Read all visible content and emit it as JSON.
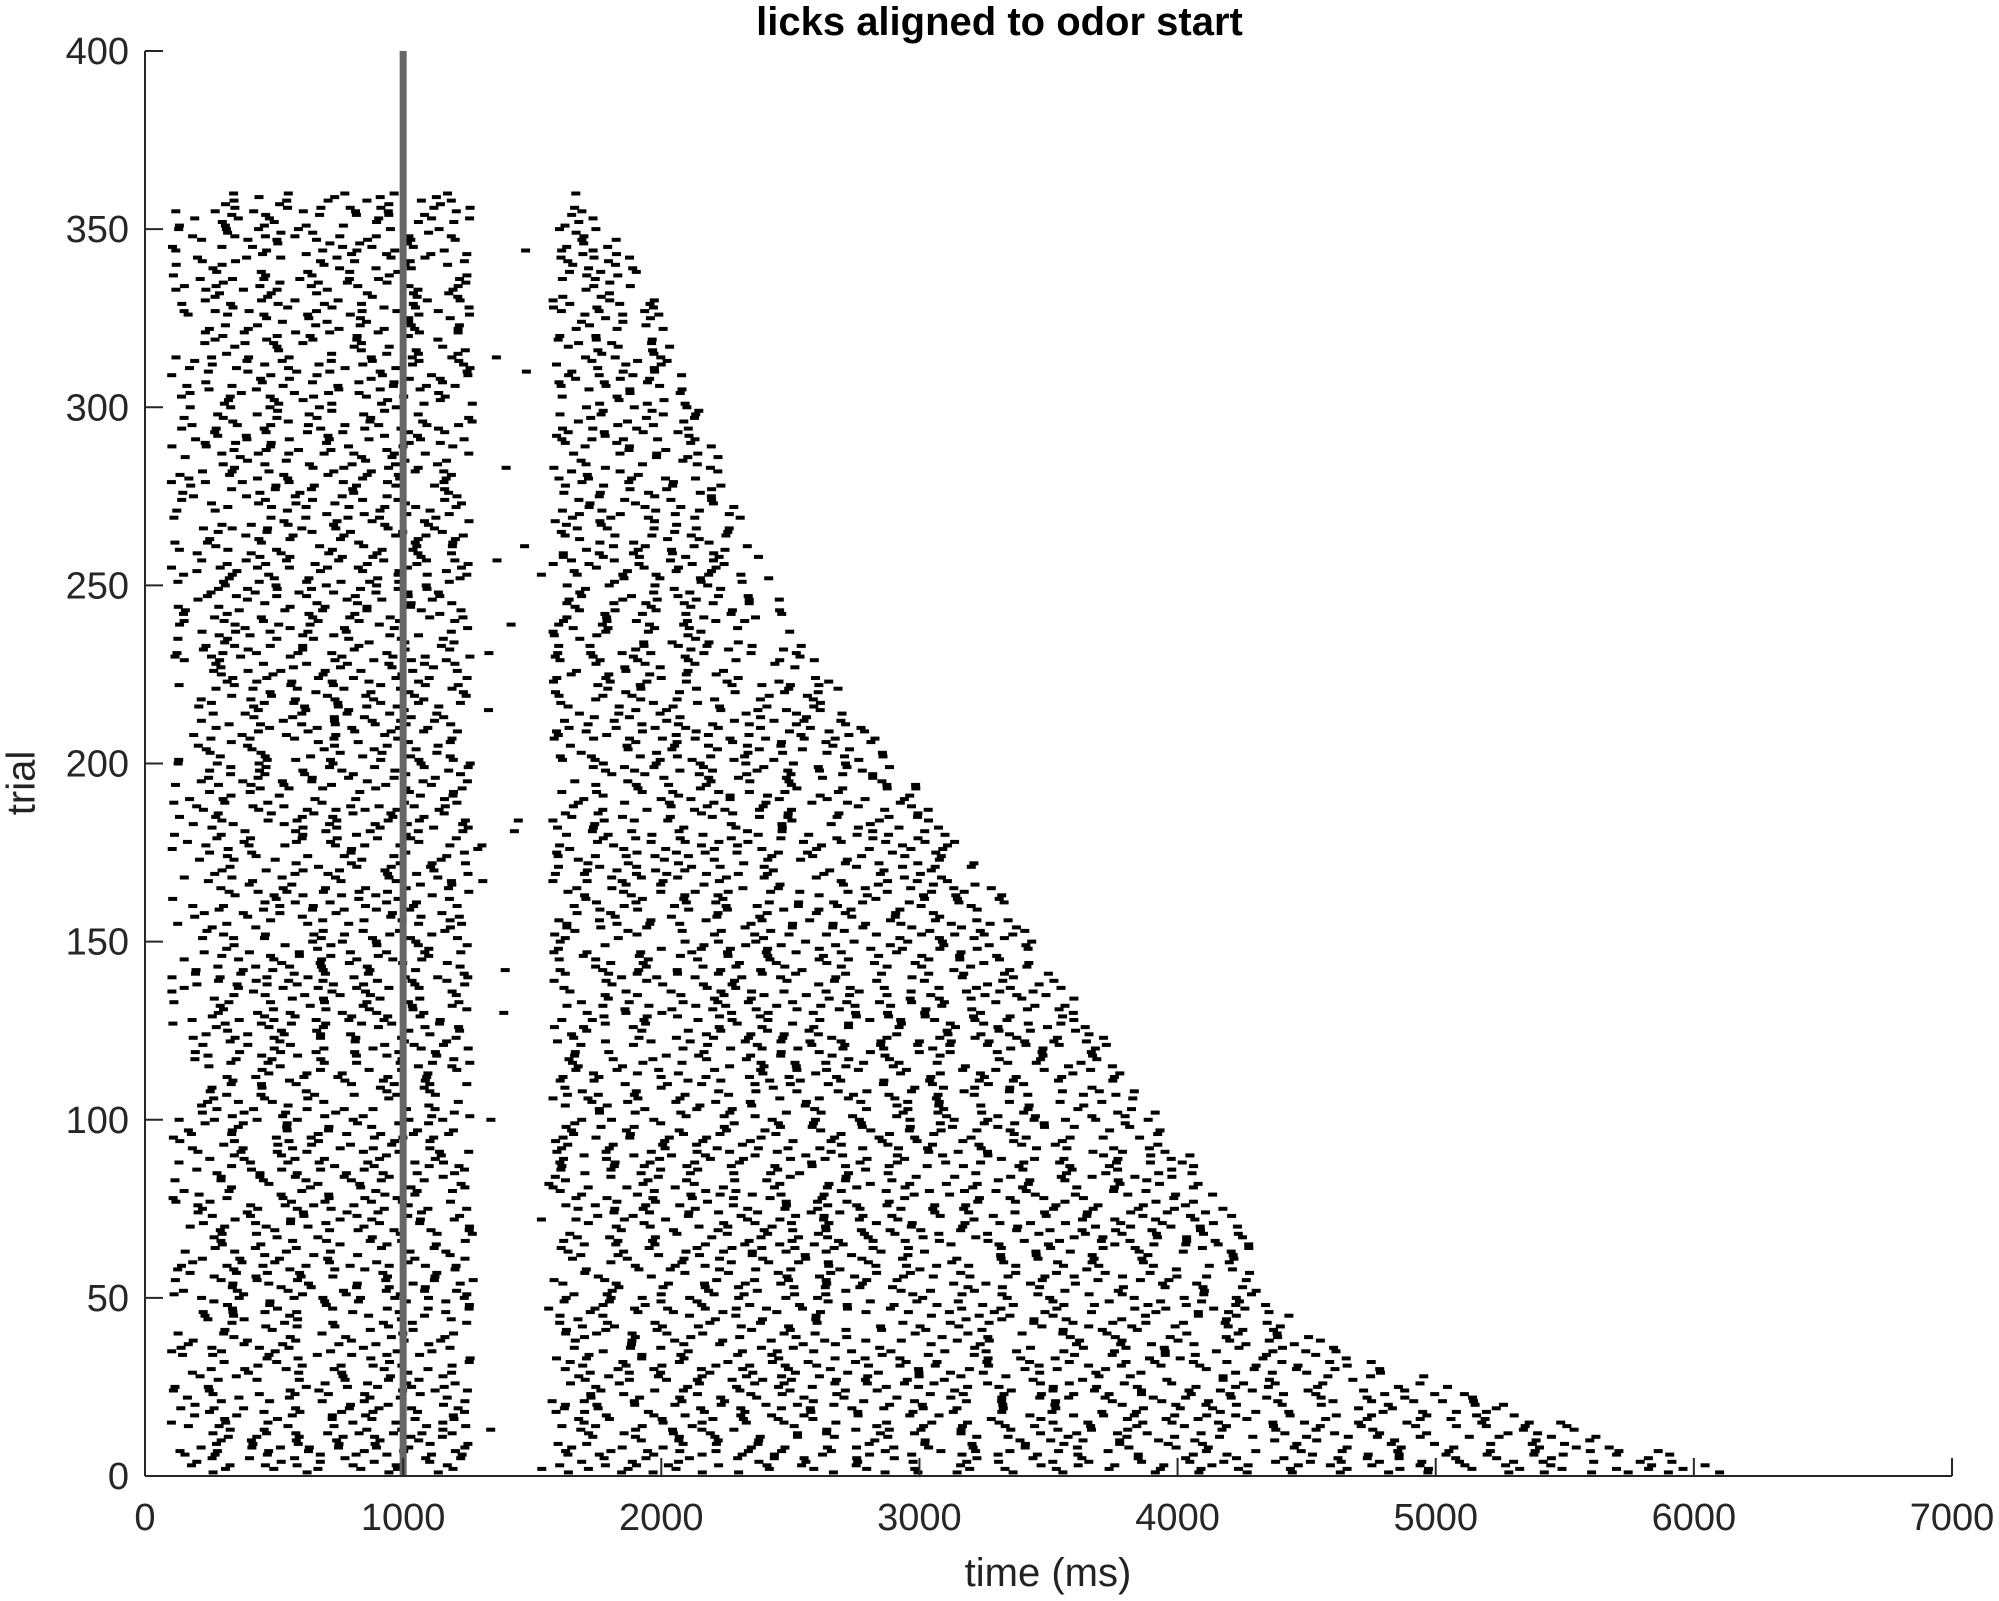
{
  "chart_data": {
    "type": "scatter",
    "title": "licks aligned to odor start",
    "xlabel": "time (ms)",
    "ylabel": "trial",
    "xlim": [
      0,
      7000
    ],
    "ylim": [
      0,
      400
    ],
    "xticks": [
      0,
      1000,
      2000,
      3000,
      4000,
      5000,
      6000,
      7000
    ],
    "yticks": [
      0,
      50,
      100,
      150,
      200,
      250,
      300,
      350,
      400
    ],
    "grid": false,
    "legend": "none",
    "marker": "tick",
    "reference_line": {
      "x": 1000,
      "color": "#666666"
    },
    "trials": 360,
    "trial_end_ms": {
      "trial": [
        0,
        20,
        40,
        60,
        80,
        100,
        120,
        150,
        180,
        210,
        240,
        270,
        300,
        320,
        340,
        350,
        358
      ],
      "time": [
        6200,
        5300,
        4500,
        4350,
        4150,
        3950,
        3750,
        3450,
        3150,
        2800,
        2500,
        2300,
        2150,
        2050,
        1900,
        1800,
        1700
      ]
    },
    "colors": {
      "licks": "#000000",
      "reference_line": "#666666",
      "axis": "#262626"
    }
  }
}
